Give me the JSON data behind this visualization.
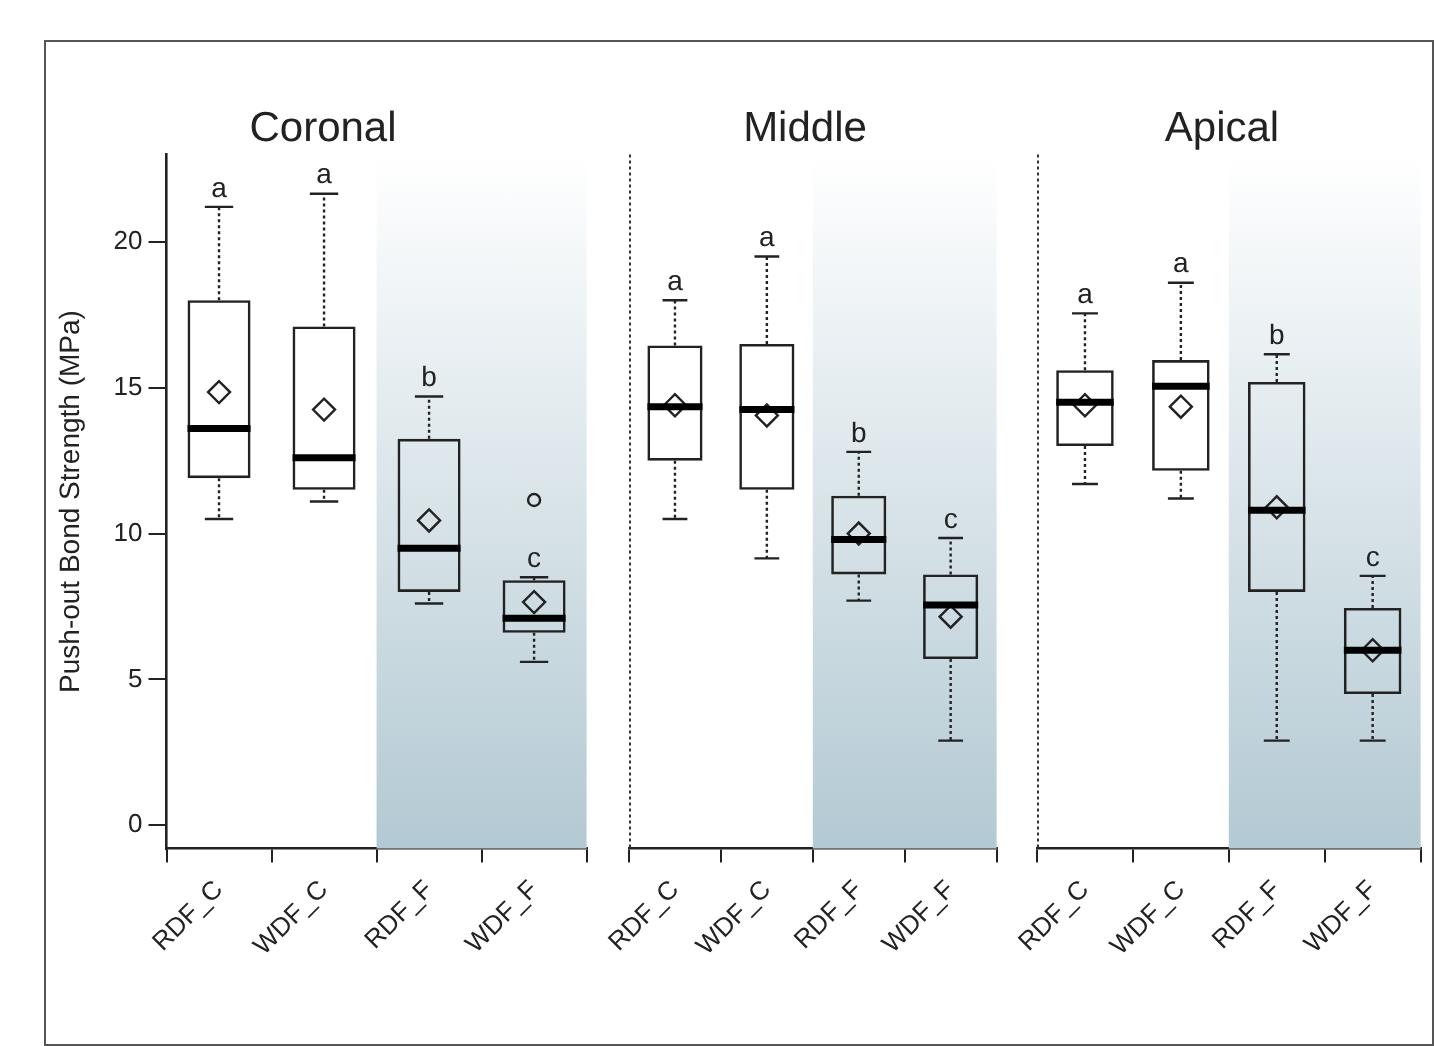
{
  "chart_data": [
    {
      "type": "box",
      "title": "Coronal",
      "ylabel": "Push-out Bond Strength (MPa)",
      "categories": [
        "RDF_C",
        "WDF_C",
        "RDF_F",
        "WDF_F"
      ],
      "boxes": [
        {
          "low": 10.5,
          "q1": 11.9,
          "median": 13.6,
          "q3": 18.0,
          "high": 21.2,
          "mean": 14.85
        },
        {
          "low": 11.1,
          "q1": 11.5,
          "median": 12.6,
          "q3": 17.1,
          "high": 21.65,
          "mean": 14.25
        },
        {
          "low": 7.6,
          "q1": 8.0,
          "median": 9.5,
          "q3": 13.25,
          "high": 14.7,
          "mean": 10.45
        },
        {
          "low": 5.6,
          "q1": 6.6,
          "median": 7.1,
          "q3": 8.4,
          "high": 8.5,
          "mean": 7.65,
          "outliers": [
            11.15
          ]
        }
      ],
      "value_labels": [
        "a",
        "a",
        "b",
        "c"
      ],
      "ylim": [
        -0.8,
        23
      ],
      "yticks": [
        0,
        5,
        10,
        15,
        20
      ],
      "bands": [
        {
          "axis": "x",
          "from": "RDF_F",
          "to": "WDF_F",
          "color": "#b3c9d3"
        }
      ]
    },
    {
      "type": "box",
      "title": "Middle",
      "categories": [
        "RDF_C",
        "WDF_C",
        "RDF_F",
        "WDF_F"
      ],
      "boxes": [
        {
          "low": 10.5,
          "q1": 12.5,
          "median": 14.35,
          "q3": 16.45,
          "high": 18.0,
          "mean": 14.4
        },
        {
          "low": 9.15,
          "q1": 11.5,
          "median": 14.25,
          "q3": 16.5,
          "high": 19.5,
          "mean": 14.05
        },
        {
          "low": 7.7,
          "q1": 8.6,
          "median": 9.8,
          "q3": 11.3,
          "high": 12.8,
          "mean": 10.0
        },
        {
          "low": 2.9,
          "q1": 5.7,
          "median": 7.55,
          "q3": 8.6,
          "high": 9.85,
          "mean": 7.15
        }
      ],
      "value_labels": [
        "a",
        "a",
        "b",
        "c"
      ],
      "ylim": [
        -0.8,
        23
      ],
      "yticks": [
        0,
        5,
        10,
        15,
        20
      ],
      "tick_labels": "x",
      "bands": [
        {
          "axis": "x",
          "from": "RDF_F",
          "to": "WDF_F",
          "color": "#b3c9d3"
        }
      ]
    },
    {
      "type": "box",
      "title": "Apical",
      "categories": [
        "RDF_C",
        "WDF_C",
        "RDF_F",
        "WDF_F"
      ],
      "boxes": [
        {
          "low": 11.7,
          "q1": 13.0,
          "median": 14.5,
          "q3": 15.6,
          "high": 17.55,
          "mean": 14.4
        },
        {
          "low": 11.2,
          "q1": 12.15,
          "median": 15.05,
          "q3": 15.95,
          "high": 18.6,
          "mean": 14.35
        },
        {
          "low": 2.9,
          "q1": 8.0,
          "median": 10.8,
          "q3": 15.2,
          "high": 16.15,
          "mean": 10.9
        },
        {
          "low": 2.9,
          "q1": 4.5,
          "median": 6.0,
          "q3": 7.45,
          "high": 8.55,
          "mean": 6.0
        }
      ],
      "value_labels": [
        "a",
        "a",
        "b",
        "c"
      ],
      "ylim": [
        -0.8,
        23
      ],
      "yticks": [
        0,
        5,
        10,
        15,
        20
      ],
      "tick_labels": "x",
      "bands": [
        {
          "axis": "x",
          "from": "RDF_F",
          "to": "WDF_F",
          "color": "#b3c9d3"
        }
      ]
    }
  ]
}
